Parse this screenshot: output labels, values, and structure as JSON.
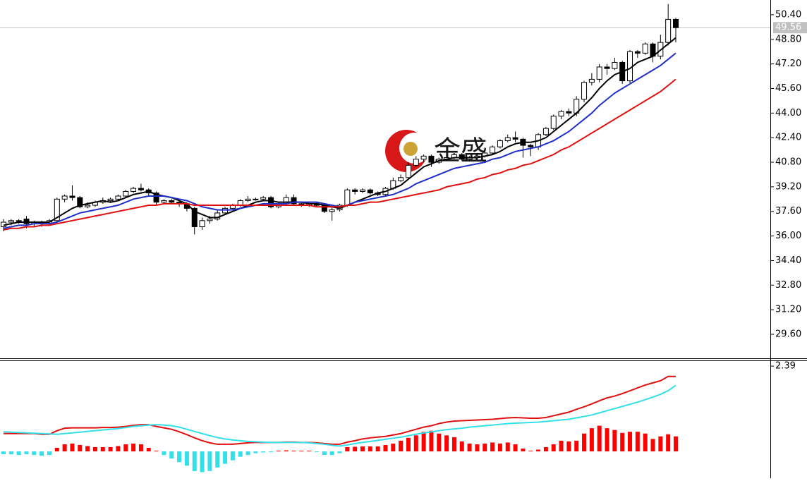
{
  "chart_data": [
    {
      "type": "candlestick",
      "watermark": "金盛",
      "open": [
        36.6,
        36.9,
        37.0,
        37.1,
        36.8,
        36.9,
        36.8,
        37.0,
        38.4,
        38.6,
        38.5,
        37.9,
        38.0,
        38.2,
        38.3,
        38.4,
        38.6,
        38.9,
        39.1,
        39.0,
        38.8,
        38.2,
        38.3,
        38.2,
        38.1,
        37.8,
        36.6,
        37.0,
        37.1,
        37.5,
        37.8,
        38.0,
        38.3,
        38.4,
        38.4,
        38.5,
        37.9,
        38.1,
        38.5,
        38.1,
        38.0,
        38.1,
        38.0,
        37.6,
        37.7,
        38.0,
        39.0,
        38.9,
        39.0,
        38.8,
        38.7,
        39.1,
        39.6,
        39.8,
        40.6,
        41.0,
        41.2,
        40.8,
        41.0,
        41.1,
        41.3,
        41.0,
        41.1,
        41.2,
        41.4,
        41.8,
        42.2,
        42.4,
        42.3,
        41.9,
        41.8,
        42.6,
        43.0,
        43.8,
        44.1,
        44.0,
        44.9,
        46.0,
        46.2,
        47.0,
        46.9,
        47.3,
        46.1,
        48.0,
        47.9,
        48.5,
        47.7,
        48.6,
        50.1
      ],
      "high": [
        37.1,
        37.1,
        37.1,
        37.3,
        37.0,
        37.0,
        37.1,
        38.5,
        38.7,
        39.3,
        38.6,
        38.2,
        38.3,
        38.5,
        38.5,
        38.7,
        39.0,
        39.2,
        39.4,
        39.1,
        38.9,
        38.4,
        38.4,
        38.3,
        38.2,
        37.9,
        37.2,
        37.3,
        37.7,
        37.9,
        38.1,
        38.4,
        38.6,
        38.5,
        38.6,
        38.6,
        38.2,
        38.7,
        38.7,
        38.2,
        38.2,
        38.2,
        38.1,
        37.9,
        38.1,
        39.1,
        39.1,
        39.1,
        39.1,
        38.9,
        39.2,
        39.8,
        40.0,
        40.8,
        41.2,
        41.3,
        41.3,
        41.1,
        41.3,
        41.4,
        41.4,
        41.2,
        41.4,
        41.6,
        41.9,
        42.3,
        42.6,
        42.8,
        42.4,
        42.0,
        42.7,
        43.1,
        43.9,
        44.2,
        44.3,
        45.1,
        46.1,
        46.6,
        47.2,
        47.2,
        47.6,
        47.4,
        48.1,
        48.1,
        48.6,
        48.6,
        49.1,
        51.1,
        50.2
      ],
      "low": [
        36.3,
        36.7,
        36.8,
        36.5,
        36.6,
        36.6,
        36.7,
        36.9,
        38.2,
        38.3,
        37.8,
        37.8,
        37.9,
        38.1,
        38.2,
        38.3,
        38.5,
        38.8,
        38.9,
        38.6,
        38.0,
        38.1,
        38.1,
        37.9,
        37.6,
        36.1,
        36.4,
        36.8,
        37.0,
        37.4,
        37.7,
        37.9,
        38.2,
        38.3,
        38.3,
        37.8,
        37.8,
        38.0,
        38.0,
        37.9,
        37.9,
        37.9,
        37.5,
        37.0,
        37.6,
        37.9,
        38.7,
        38.8,
        38.7,
        38.6,
        38.6,
        39.0,
        39.5,
        39.7,
        40.5,
        40.8,
        40.5,
        40.7,
        40.9,
        41.0,
        40.9,
        40.9,
        41.0,
        41.1,
        41.3,
        41.7,
        42.1,
        42.1,
        41.1,
        41.2,
        41.6,
        42.5,
        42.9,
        43.6,
        43.8,
        43.8,
        44.7,
        45.8,
        46.0,
        46.5,
        46.8,
        45.9,
        45.9,
        47.6,
        47.8,
        47.3,
        47.5,
        48.4,
        48.6
      ],
      "close": [
        36.9,
        37.0,
        37.0,
        36.8,
        36.9,
        36.8,
        37.0,
        38.4,
        38.6,
        38.5,
        37.9,
        38.0,
        38.2,
        38.3,
        38.4,
        38.6,
        38.9,
        39.1,
        39.0,
        38.8,
        38.2,
        38.3,
        38.2,
        38.1,
        37.8,
        36.6,
        37.0,
        37.1,
        37.5,
        37.8,
        38.0,
        38.3,
        38.4,
        38.4,
        38.5,
        37.9,
        38.1,
        38.5,
        38.1,
        38.0,
        38.1,
        38.0,
        37.6,
        37.7,
        38.0,
        39.0,
        38.9,
        39.0,
        38.8,
        38.7,
        39.1,
        39.6,
        39.8,
        40.6,
        41.0,
        41.2,
        40.8,
        41.0,
        41.1,
        41.3,
        41.0,
        41.1,
        41.2,
        41.4,
        41.8,
        42.2,
        42.4,
        42.3,
        41.9,
        41.8,
        42.6,
        43.0,
        43.8,
        44.1,
        44.0,
        44.9,
        46.0,
        46.2,
        47.0,
        46.9,
        47.3,
        46.1,
        48.0,
        47.9,
        48.5,
        47.7,
        48.6,
        50.1,
        49.56
      ],
      "series": [
        {
          "color": "#000000",
          "values": [
            36.7,
            36.8,
            36.9,
            36.9,
            36.9,
            36.9,
            36.9,
            37.2,
            37.5,
            37.8,
            38.0,
            38.1,
            38.2,
            38.3,
            38.2,
            38.3,
            38.5,
            38.7,
            38.8,
            38.9,
            38.7,
            38.6,
            38.5,
            38.3,
            38.1,
            37.6,
            37.4,
            37.2,
            37.2,
            37.4,
            37.6,
            37.8,
            38.0,
            38.2,
            38.3,
            38.3,
            38.2,
            38.2,
            38.2,
            38.2,
            38.1,
            38.1,
            38.0,
            37.9,
            37.8,
            38.0,
            38.2,
            38.4,
            38.6,
            38.8,
            38.9,
            39.1,
            39.3,
            39.7,
            40.1,
            40.5,
            40.7,
            40.9,
            41.0,
            41.1,
            41.1,
            41.1,
            41.1,
            41.2,
            41.3,
            41.5,
            41.8,
            42.0,
            42.1,
            42.1,
            42.2,
            42.4,
            42.8,
            43.2,
            43.6,
            44.0,
            44.5,
            45.0,
            45.6,
            46.1,
            46.5,
            46.7,
            46.9,
            47.3,
            47.5,
            47.7,
            48.1,
            48.5,
            48.9
          ]
        },
        {
          "color": "#1f2fc8",
          "values": [
            36.5,
            36.6,
            36.7,
            36.7,
            36.8,
            36.8,
            36.8,
            36.9,
            37.1,
            37.3,
            37.5,
            37.6,
            37.7,
            37.8,
            37.9,
            38.0,
            38.2,
            38.4,
            38.5,
            38.6,
            38.6,
            38.6,
            38.5,
            38.4,
            38.3,
            38.1,
            37.9,
            37.8,
            37.7,
            37.7,
            37.7,
            37.8,
            37.9,
            38.0,
            38.1,
            38.1,
            38.1,
            38.1,
            38.2,
            38.2,
            38.2,
            38.2,
            38.1,
            38.0,
            37.9,
            38.0,
            38.2,
            38.3,
            38.4,
            38.5,
            38.6,
            38.7,
            38.9,
            39.1,
            39.4,
            39.6,
            39.8,
            40.0,
            40.2,
            40.4,
            40.5,
            40.6,
            40.7,
            40.8,
            41.0,
            41.1,
            41.3,
            41.5,
            41.6,
            41.7,
            41.8,
            42.0,
            42.2,
            42.5,
            42.8,
            43.2,
            43.6,
            44.0,
            44.5,
            44.9,
            45.3,
            45.6,
            45.9,
            46.2,
            46.5,
            46.8,
            47.1,
            47.5,
            47.9
          ]
        },
        {
          "color": "#e01010",
          "values": [
            36.4,
            36.5,
            36.5,
            36.6,
            36.6,
            36.7,
            36.7,
            36.8,
            36.9,
            37.0,
            37.1,
            37.2,
            37.3,
            37.4,
            37.5,
            37.6,
            37.7,
            37.8,
            37.9,
            38.0,
            38.0,
            38.1,
            38.1,
            38.1,
            38.1,
            38.0,
            38.0,
            38.0,
            38.0,
            38.0,
            38.0,
            38.0,
            38.0,
            38.0,
            38.0,
            38.0,
            38.0,
            38.0,
            38.0,
            38.0,
            38.0,
            37.9,
            37.9,
            37.9,
            37.9,
            38.0,
            38.0,
            38.1,
            38.2,
            38.2,
            38.3,
            38.4,
            38.5,
            38.6,
            38.7,
            38.8,
            38.9,
            39.0,
            39.2,
            39.3,
            39.4,
            39.5,
            39.7,
            39.8,
            40.0,
            40.1,
            40.3,
            40.4,
            40.6,
            40.7,
            40.9,
            41.1,
            41.3,
            41.6,
            41.8,
            42.1,
            42.4,
            42.7,
            43.0,
            43.3,
            43.6,
            43.9,
            44.2,
            44.5,
            44.8,
            45.1,
            45.4,
            45.8,
            46.2
          ]
        }
      ],
      "last_price": 49.56,
      "ylim": [
        28.04,
        51.36
      ],
      "yticks": [
        {
          "value": 29.6,
          "label": "29.60"
        },
        {
          "value": 31.2,
          "label": "31.20"
        },
        {
          "value": 32.8,
          "label": "32.80"
        },
        {
          "value": 34.4,
          "label": "34.40"
        },
        {
          "value": 36.0,
          "label": "36.00"
        },
        {
          "value": 37.6,
          "label": "37.60"
        },
        {
          "value": 39.2,
          "label": "39.20"
        },
        {
          "value": 40.8,
          "label": "40.80"
        },
        {
          "value": 42.4,
          "label": "42.40"
        },
        {
          "value": 44.0,
          "label": "44.00"
        },
        {
          "value": 45.6,
          "label": "45.60"
        },
        {
          "value": 47.2,
          "label": "47.20"
        },
        {
          "value": 48.8,
          "label": "48.80"
        },
        {
          "value": 50.4,
          "label": "50.40"
        }
      ]
    },
    {
      "type": "macd",
      "histogram": [
        -0.08,
        -0.08,
        -0.1,
        -0.08,
        -0.1,
        -0.12,
        -0.1,
        0.1,
        0.2,
        0.22,
        0.18,
        0.15,
        0.12,
        0.12,
        0.12,
        0.15,
        0.2,
        0.22,
        0.2,
        0.1,
        0.02,
        -0.1,
        -0.2,
        -0.3,
        -0.4,
        -0.55,
        -0.58,
        -0.55,
        -0.45,
        -0.35,
        -0.25,
        -0.15,
        -0.1,
        -0.05,
        -0.03,
        -0.02,
        0.02,
        0.03,
        0.02,
        0.02,
        0.02,
        -0.02,
        -0.1,
        -0.1,
        -0.05,
        0.12,
        0.13,
        0.14,
        0.14,
        0.14,
        0.18,
        0.22,
        0.3,
        0.38,
        0.45,
        0.55,
        0.58,
        0.5,
        0.45,
        0.4,
        0.28,
        0.22,
        0.2,
        0.22,
        0.25,
        0.22,
        0.25,
        0.2,
        0.08,
        0.02,
        0.05,
        0.12,
        0.2,
        0.3,
        0.28,
        0.3,
        0.5,
        0.65,
        0.72,
        0.65,
        0.6,
        0.52,
        0.55,
        0.55,
        0.5,
        0.35,
        0.42,
        0.48,
        0.42
      ],
      "positive_color": "#ff0000",
      "negative_color": "#33e0e8",
      "series": [
        {
          "color": "#e01010",
          "values": [
            0.5,
            0.5,
            0.5,
            0.5,
            0.5,
            0.48,
            0.48,
            0.58,
            0.65,
            0.66,
            0.66,
            0.66,
            0.66,
            0.67,
            0.67,
            0.68,
            0.7,
            0.73,
            0.75,
            0.75,
            0.7,
            0.66,
            0.62,
            0.55,
            0.47,
            0.38,
            0.3,
            0.24,
            0.2,
            0.2,
            0.2,
            0.22,
            0.24,
            0.25,
            0.25,
            0.25,
            0.25,
            0.26,
            0.26,
            0.25,
            0.25,
            0.24,
            0.22,
            0.2,
            0.2,
            0.26,
            0.3,
            0.35,
            0.38,
            0.4,
            0.42,
            0.46,
            0.5,
            0.56,
            0.62,
            0.68,
            0.72,
            0.78,
            0.82,
            0.85,
            0.86,
            0.87,
            0.88,
            0.89,
            0.9,
            0.92,
            0.94,
            0.95,
            0.94,
            0.93,
            0.93,
            0.95,
            1.0,
            1.05,
            1.1,
            1.18,
            1.25,
            1.33,
            1.42,
            1.5,
            1.55,
            1.62,
            1.7,
            1.78,
            1.86,
            1.92,
            1.98,
            2.1,
            2.1
          ]
        },
        {
          "color": "#33e0e8",
          "values": [
            0.55,
            0.54,
            0.53,
            0.52,
            0.51,
            0.5,
            0.49,
            0.48,
            0.5,
            0.52,
            0.54,
            0.56,
            0.58,
            0.6,
            0.62,
            0.64,
            0.67,
            0.7,
            0.72,
            0.74,
            0.75,
            0.74,
            0.72,
            0.68,
            0.62,
            0.56,
            0.5,
            0.44,
            0.39,
            0.35,
            0.32,
            0.3,
            0.28,
            0.27,
            0.26,
            0.25,
            0.25,
            0.25,
            0.25,
            0.25,
            0.24,
            0.22,
            0.2,
            0.17,
            0.15,
            0.18,
            0.22,
            0.25,
            0.28,
            0.31,
            0.34,
            0.37,
            0.4,
            0.44,
            0.48,
            0.52,
            0.55,
            0.58,
            0.61,
            0.63,
            0.65,
            0.68,
            0.7,
            0.72,
            0.74,
            0.76,
            0.78,
            0.79,
            0.8,
            0.81,
            0.82,
            0.84,
            0.86,
            0.88,
            0.9,
            0.94,
            0.98,
            1.02,
            1.08,
            1.14,
            1.2,
            1.26,
            1.32,
            1.38,
            1.45,
            1.52,
            1.6,
            1.7,
            1.85
          ]
        }
      ],
      "ylim": [
        -0.75,
        2.53
      ],
      "yticks": [
        2.39
      ]
    }
  ]
}
